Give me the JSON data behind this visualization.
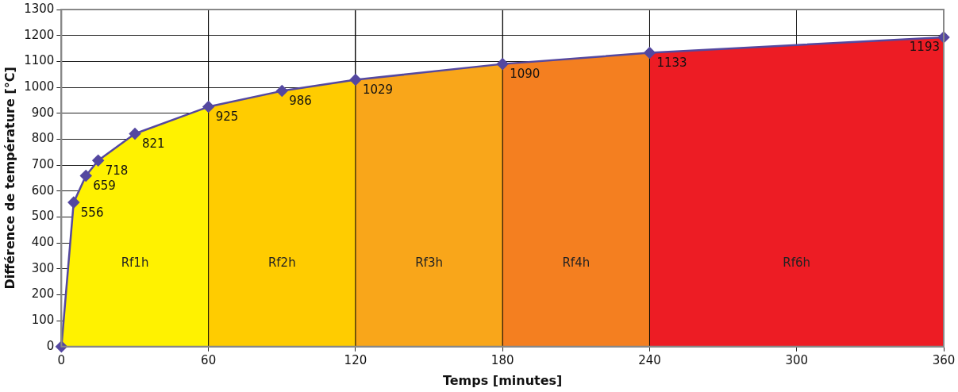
{
  "chart_data": {
    "type": "line",
    "xlabel": "Temps [minutes]",
    "ylabel": "Différence de température [°C]",
    "x": [
      0,
      5,
      10,
      15,
      30,
      60,
      90,
      120,
      180,
      240,
      360
    ],
    "series": [
      {
        "color": "#5448a0",
        "values": [
          0,
          556,
          659,
          718,
          821,
          925,
          986,
          1029,
          1090,
          1133,
          1193
        ],
        "value_labels": [
          null,
          "556",
          "659",
          "718",
          "821",
          "925",
          "986",
          "1029",
          "1090",
          "1133",
          "1193"
        ]
      }
    ],
    "xlim": [
      0,
      360
    ],
    "xticks": [
      0,
      60,
      120,
      180,
      240,
      300,
      360
    ],
    "ylim": [
      0,
      1300
    ],
    "yticks": [
      0,
      100,
      200,
      300,
      400,
      500,
      600,
      700,
      800,
      900,
      1000,
      1100,
      1200,
      1300
    ],
    "bands": [
      {
        "axis": "x",
        "from": 0,
        "to": 60,
        "label": "Rf1h",
        "color": "#fff200"
      },
      {
        "axis": "x",
        "from": 60,
        "to": 120,
        "label": "Rf2h",
        "color": "#ffcc00"
      },
      {
        "axis": "x",
        "from": 120,
        "to": 180,
        "label": "Rf3h",
        "color": "#f9a61a"
      },
      {
        "axis": "x",
        "from": 180,
        "to": 240,
        "label": "Rf4h",
        "color": "#f47f20"
      },
      {
        "axis": "x",
        "from": 240,
        "to": 360,
        "label": "Rf6h",
        "color": "#ed1c24"
      }
    ],
    "grid": true,
    "marker": "diamond",
    "legend": false
  }
}
